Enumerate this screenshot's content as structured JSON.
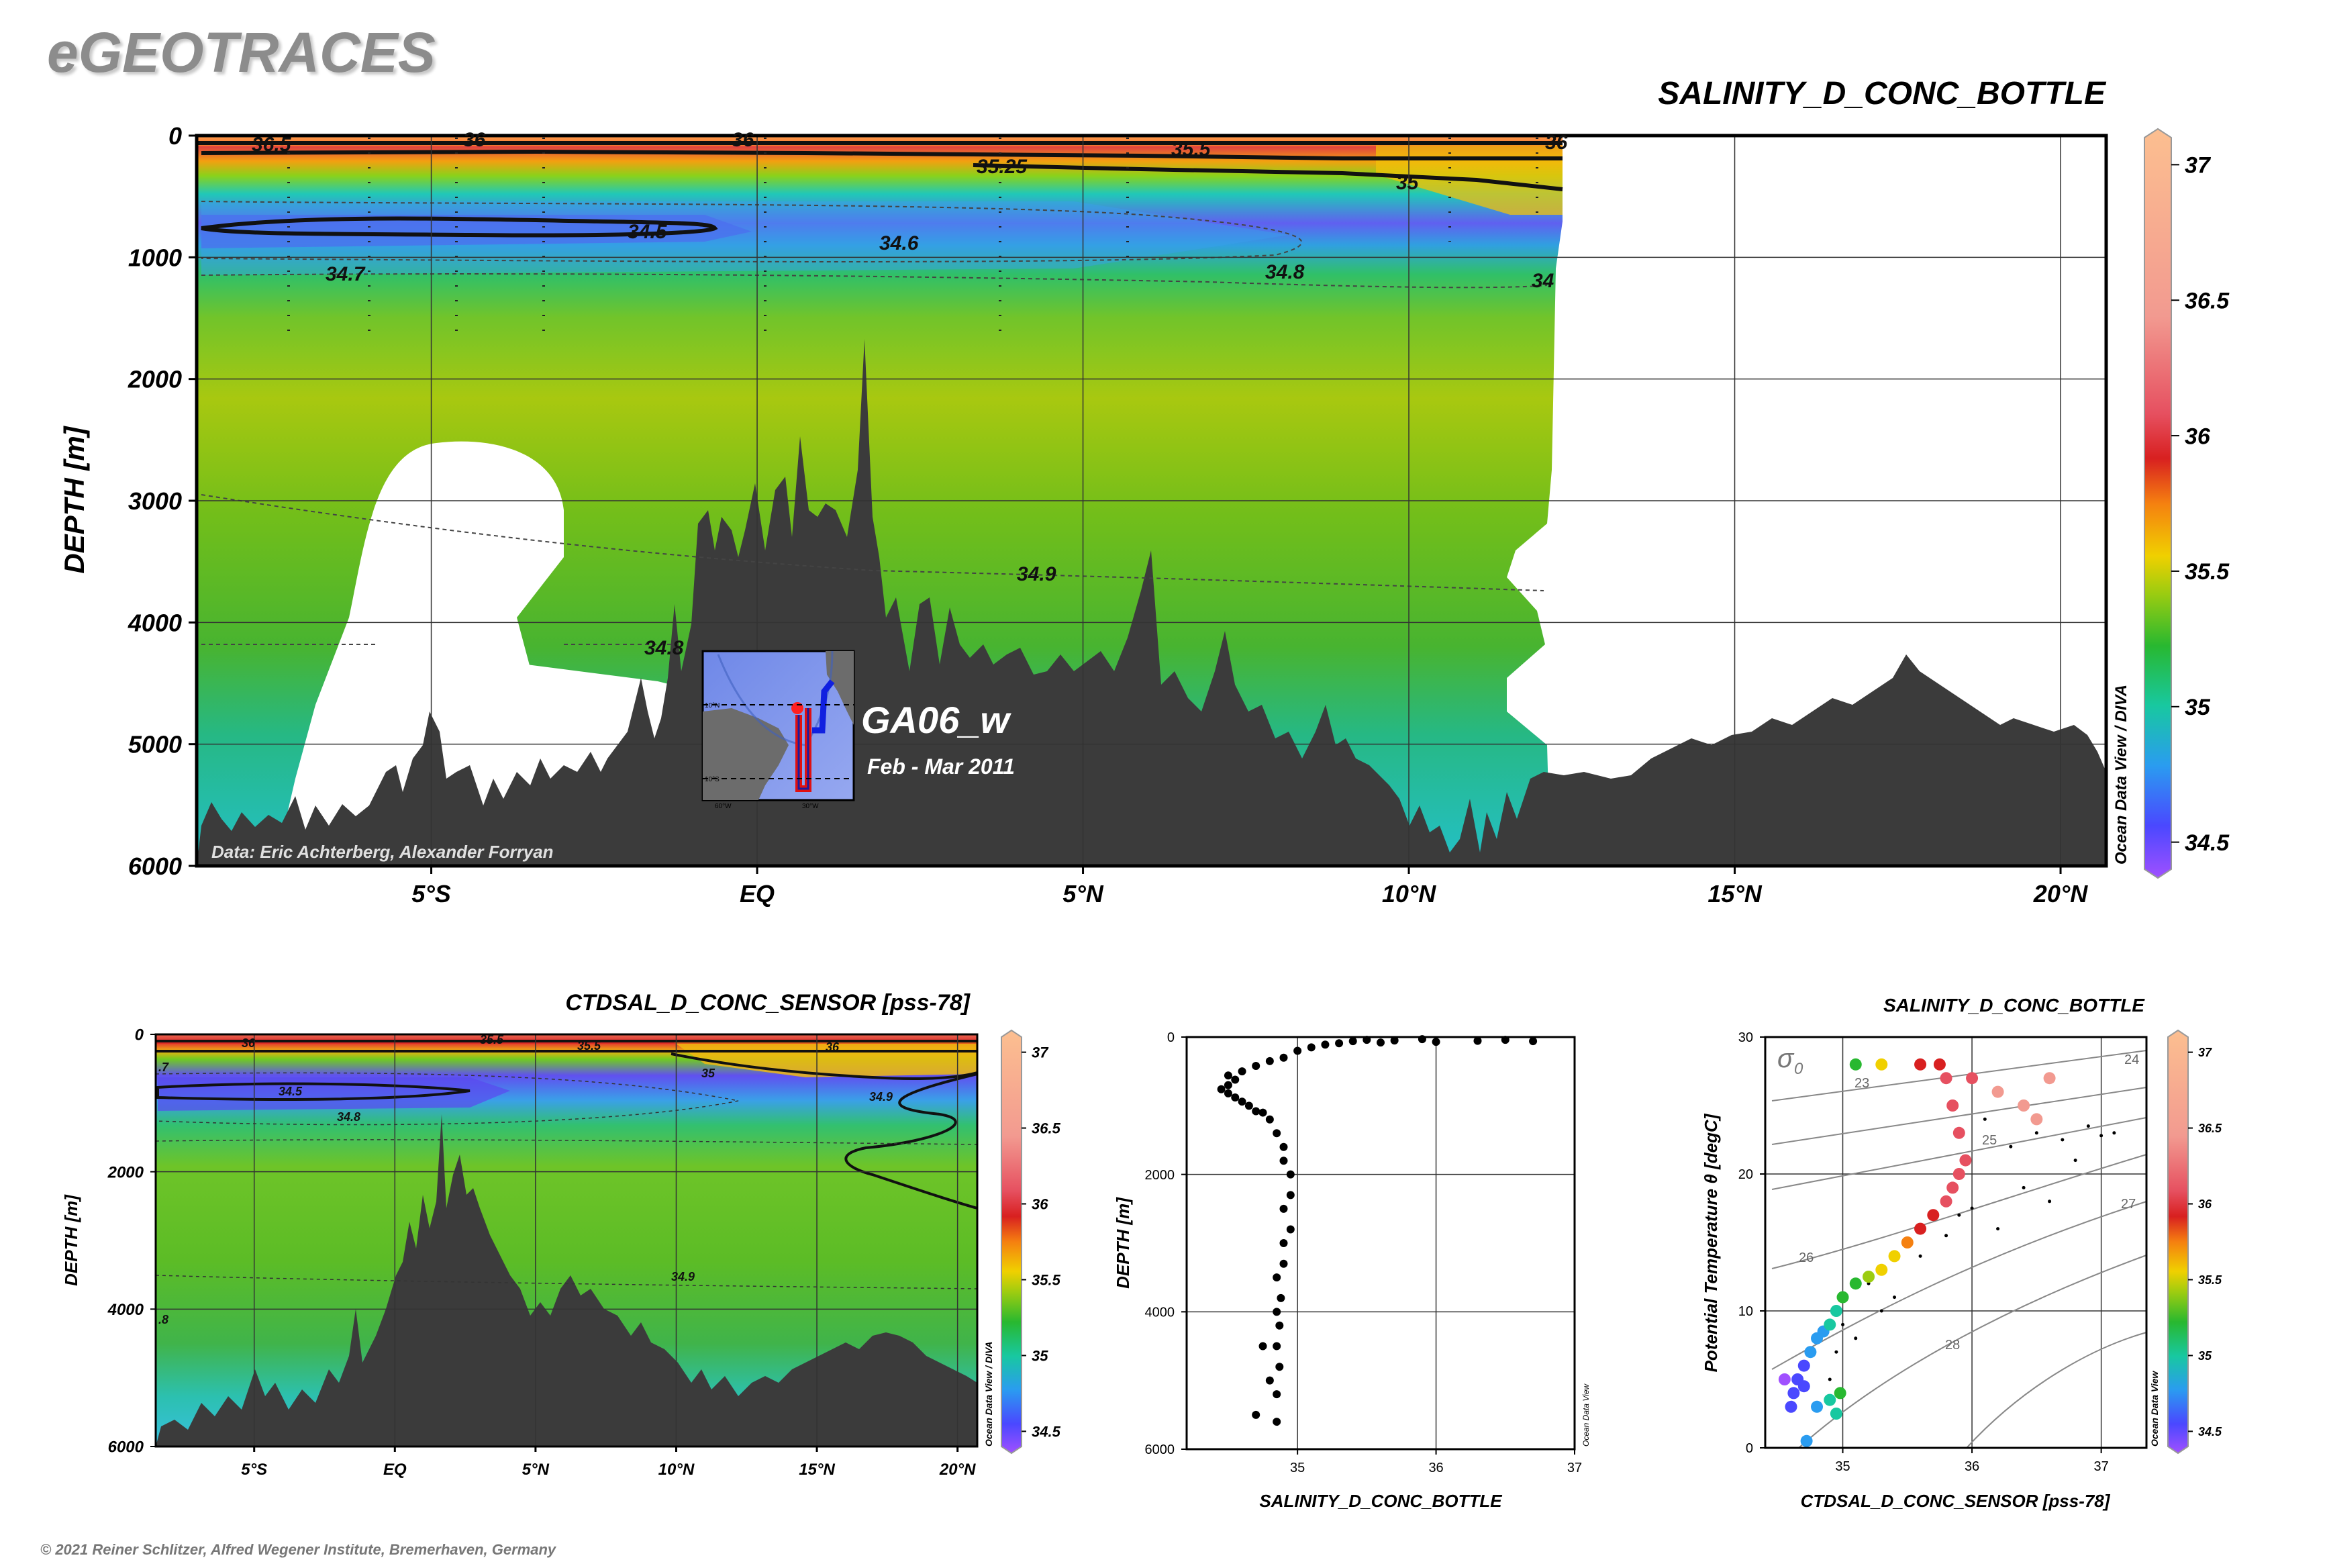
{
  "app": {
    "brand": "eGEOTRACES",
    "copyright": "© 2021 Reiner Schlitzer, Alfred Wegener Institute, Bremerhaven, Germany"
  },
  "inset": {
    "cruise": "GA06_w",
    "dates": "Feb - Mar 2011",
    "lon_labels": [
      "60°W",
      "30°W"
    ],
    "lat_labels": [
      "10°N",
      "10°S"
    ]
  },
  "colors": {
    "seafloor": "#3b3b3b",
    "land": "#ffffff",
    "track_red": "#e01010",
    "track_blue": "#1020e0"
  },
  "chart_data": [
    {
      "type": "heatmap",
      "id": "main-section",
      "title": "SALINITY_D_CONC_BOTTLE",
      "ylabel": "DEPTH [m]",
      "xlabel": "",
      "x_ticks": [
        "5°S",
        "EQ",
        "5°N",
        "10°N",
        "15°N",
        "20°N"
      ],
      "x_tick_values": [
        -5,
        0,
        5,
        10,
        15,
        20
      ],
      "xlim": [
        -8.6,
        20.7
      ],
      "y_ticks": [
        "0",
        "1000",
        "2000",
        "3000",
        "4000",
        "5000",
        "6000"
      ],
      "ylim": [
        0,
        6000
      ],
      "colorbar": {
        "ticks": [
          "34.5",
          "35",
          "35.5",
          "36",
          "36.5",
          "37"
        ],
        "range": [
          34.4,
          37.1
        ],
        "label": "Ocean Data View / DIVA"
      },
      "contour_labels": [
        "36.5",
        "36",
        "36",
        "36",
        "35.5",
        "35.25",
        "35",
        "34.5",
        "34.6",
        "34.7",
        "34.8",
        "34",
        "34.9",
        "34.8"
      ],
      "credit": "Data: Eric Achterberg, Alexander Forryan",
      "grid": true
    },
    {
      "type": "heatmap",
      "id": "sensor-section",
      "title": "CTDSAL_D_CONC_SENSOR [pss-78]",
      "ylabel": "DEPTH [m]",
      "x_ticks": [
        "5°S",
        "EQ",
        "5°N",
        "10°N",
        "15°N",
        "20°N"
      ],
      "x_tick_values": [
        -5,
        0,
        5,
        10,
        15,
        20
      ],
      "xlim": [
        -8.5,
        20.7
      ],
      "y_ticks": [
        "0",
        "2000",
        "4000",
        "6000"
      ],
      "ylim": [
        0,
        6000
      ],
      "colorbar": {
        "ticks": [
          "34.5",
          "35",
          "35.5",
          "36",
          "36.5",
          "37"
        ],
        "range": [
          34.4,
          37.1
        ],
        "label": "Ocean Data View / DIVA"
      },
      "contour_labels": [
        "36",
        "35.5",
        "35.5",
        "36",
        "35",
        "34.5",
        "34.8",
        "34.9",
        "34.9",
        ".8",
        ".7"
      ],
      "grid": true
    },
    {
      "type": "scatter",
      "id": "profile",
      "xlabel": "SALINITY_D_CONC_BOTTLE",
      "ylabel": "DEPTH [m]",
      "x_ticks": [
        "35",
        "36",
        "37"
      ],
      "xlim": [
        34.2,
        37.0
      ],
      "y_ticks": [
        "0",
        "2000",
        "4000",
        "6000"
      ],
      "ylim": [
        0,
        6000
      ],
      "side_label": "Ocean Data View",
      "points": [
        [
          36.7,
          60
        ],
        [
          36.5,
          40
        ],
        [
          36.3,
          55
        ],
        [
          36.0,
          70
        ],
        [
          35.9,
          30
        ],
        [
          35.7,
          50
        ],
        [
          35.6,
          80
        ],
        [
          35.5,
          40
        ],
        [
          35.4,
          60
        ],
        [
          35.3,
          90
        ],
        [
          35.2,
          110
        ],
        [
          35.1,
          150
        ],
        [
          35.0,
          200
        ],
        [
          34.9,
          300
        ],
        [
          34.8,
          350
        ],
        [
          34.7,
          420
        ],
        [
          34.6,
          500
        ],
        [
          34.5,
          560
        ],
        [
          34.55,
          620
        ],
        [
          34.5,
          700
        ],
        [
          34.45,
          760
        ],
        [
          34.5,
          820
        ],
        [
          34.55,
          880
        ],
        [
          34.6,
          940
        ],
        [
          34.65,
          1000
        ],
        [
          34.7,
          1080
        ],
        [
          34.75,
          1100
        ],
        [
          34.8,
          1200
        ],
        [
          34.85,
          1400
        ],
        [
          34.9,
          1600
        ],
        [
          34.9,
          1800
        ],
        [
          34.95,
          2000
        ],
        [
          34.95,
          2300
        ],
        [
          34.9,
          2500
        ],
        [
          34.95,
          2800
        ],
        [
          34.9,
          3000
        ],
        [
          34.9,
          3300
        ],
        [
          34.85,
          3500
        ],
        [
          34.88,
          3800
        ],
        [
          34.85,
          4000
        ],
        [
          34.87,
          4200
        ],
        [
          34.85,
          4500
        ],
        [
          34.75,
          4500
        ],
        [
          34.87,
          4800
        ],
        [
          34.8,
          5000
        ],
        [
          34.85,
          5200
        ],
        [
          34.7,
          5500
        ],
        [
          34.85,
          5600
        ]
      ],
      "grid": true
    },
    {
      "type": "scatter",
      "id": "ts-diagram",
      "title": "SALINITY_D_CONC_BOTTLE",
      "xlabel": "CTDSAL_D_CONC_SENSOR [pss-78]",
      "ylabel": "Potential Temperature θ [degC]",
      "x_ticks": [
        "35",
        "36",
        "37"
      ],
      "xlim": [
        34.4,
        37.35
      ],
      "y_ticks": [
        "0",
        "10",
        "20",
        "30"
      ],
      "ylim": [
        0,
        30
      ],
      "sigma_label": "σ",
      "sigma_sub": "0",
      "isopycnal_labels": [
        "23",
        "24",
        "25",
        "26",
        "27",
        "28"
      ],
      "colorbar": {
        "ticks": [
          "34.5",
          "35",
          "35.5",
          "36",
          "36.5",
          "37"
        ],
        "range": [
          34.4,
          37.1
        ],
        "label": "Ocean Data View"
      },
      "points": [
        [
          34.6,
          3
        ],
        [
          34.62,
          4
        ],
        [
          34.65,
          5
        ],
        [
          34.7,
          6
        ],
        [
          34.75,
          7
        ],
        [
          34.8,
          8
        ],
        [
          34.85,
          8.5
        ],
        [
          34.9,
          9
        ],
        [
          34.95,
          10
        ],
        [
          35.0,
          11
        ],
        [
          35.1,
          12
        ],
        [
          35.2,
          12.5
        ],
        [
          35.3,
          13
        ],
        [
          35.4,
          14
        ],
        [
          35.5,
          15
        ],
        [
          35.6,
          16
        ],
        [
          35.7,
          17
        ],
        [
          35.8,
          18
        ],
        [
          35.85,
          19
        ],
        [
          35.9,
          20
        ],
        [
          35.95,
          21
        ],
        [
          35.9,
          23
        ],
        [
          35.85,
          25
        ],
        [
          35.8,
          27
        ],
        [
          35.75,
          28
        ],
        [
          36.0,
          27
        ],
        [
          36.2,
          26
        ],
        [
          36.4,
          25
        ],
        [
          36.6,
          27
        ],
        [
          36.5,
          24
        ],
        [
          35.3,
          28
        ],
        [
          35.1,
          28
        ],
        [
          35.6,
          28
        ],
        [
          34.55,
          5
        ],
        [
          34.7,
          4.5
        ],
        [
          34.9,
          3.5
        ],
        [
          34.95,
          2.5
        ],
        [
          34.8,
          3
        ],
        [
          34.72,
          0.5
        ],
        [
          34.98,
          4
        ]
      ],
      "grid": true
    }
  ]
}
